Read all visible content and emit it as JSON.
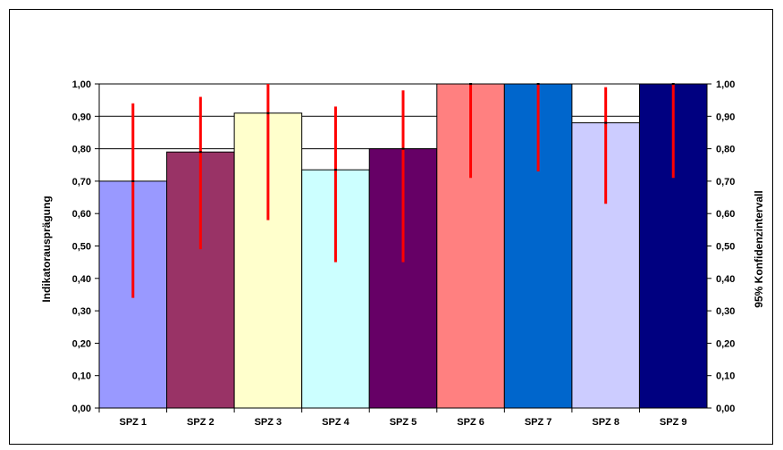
{
  "chart_data": {
    "type": "bar",
    "title": "",
    "categories": [
      "SPZ 1",
      "SPZ 2",
      "SPZ 3",
      "SPZ 4",
      "SPZ 5",
      "SPZ 6",
      "SPZ 7",
      "SPZ 8",
      "SPZ 9"
    ],
    "values": [
      0.7,
      0.79,
      0.91,
      0.735,
      0.8,
      1.0,
      1.0,
      0.88,
      1.0
    ],
    "ci_low": [
      0.34,
      0.49,
      0.58,
      0.45,
      0.45,
      0.71,
      0.73,
      0.63,
      0.71
    ],
    "ci_high": [
      0.94,
      0.96,
      1.0,
      0.93,
      0.98,
      1.0,
      1.0,
      0.99,
      1.0
    ],
    "bar_colors": [
      "#9999ff",
      "#993366",
      "#ffffcc",
      "#ccffff",
      "#660066",
      "#ff8080",
      "#0066cc",
      "#ccccff",
      "#000080"
    ],
    "error_bar_color": "#ff0000",
    "reference_lines": [
      0.8,
      0.9,
      1.0
    ],
    "ylabel_left": "Indikatorausprägung",
    "ylabel_right": "95% Konfidenzintervall",
    "ylim": [
      0,
      1
    ],
    "y_ticks": [
      "0,00",
      "0,10",
      "0,20",
      "0,30",
      "0,40",
      "0,50",
      "0,60",
      "0,70",
      "0,80",
      "0,90",
      "1,00"
    ],
    "grid": false
  }
}
